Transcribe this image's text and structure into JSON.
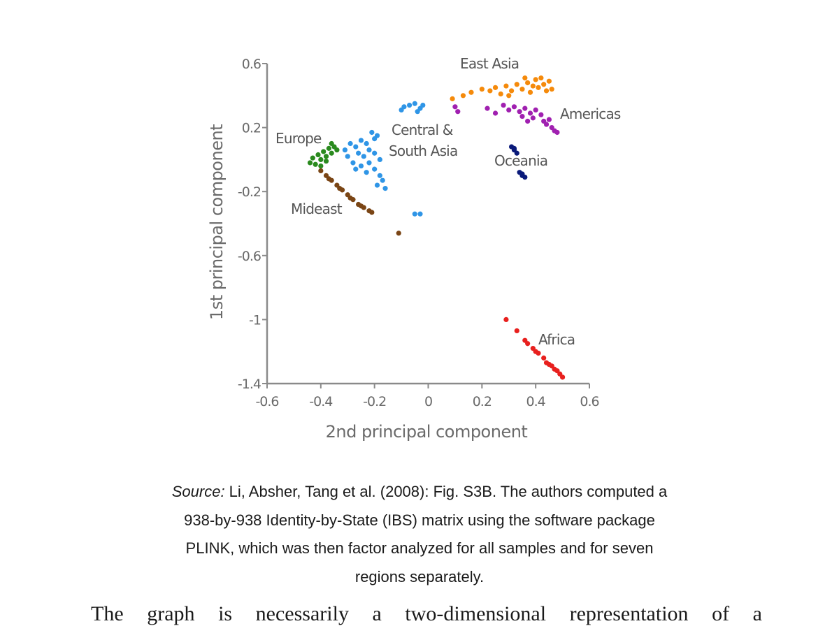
{
  "chart_data": {
    "type": "scatter",
    "xlabel": "2nd principal component",
    "ylabel": "1st principal component",
    "xlim": [
      -0.6,
      0.6
    ],
    "ylim": [
      -1.4,
      0.6
    ],
    "xticks": [
      -0.6,
      -0.4,
      -0.2,
      0,
      0.2,
      0.4,
      0.6
    ],
    "yticks": [
      0.6,
      0.2,
      -0.2,
      -0.6,
      -1,
      -1.4
    ],
    "xtick_labels": [
      "-0.6",
      "-0.4",
      "-0.2",
      "0",
      "0.2",
      "0.4",
      "0.6"
    ],
    "ytick_labels": [
      "0.6",
      "0.2",
      "-0.2",
      "-0.6",
      "-1",
      "-1.4"
    ],
    "grid": false,
    "legend": "none",
    "series": [
      {
        "name": "East Asia",
        "color": "#f58a0b",
        "label": "East Asia",
        "points": [
          [
            0.09,
            0.38
          ],
          [
            0.13,
            0.4
          ],
          [
            0.16,
            0.42
          ],
          [
            0.2,
            0.44
          ],
          [
            0.23,
            0.43
          ],
          [
            0.25,
            0.45
          ],
          [
            0.27,
            0.41
          ],
          [
            0.29,
            0.46
          ],
          [
            0.31,
            0.43
          ],
          [
            0.33,
            0.47
          ],
          [
            0.35,
            0.44
          ],
          [
            0.37,
            0.48
          ],
          [
            0.38,
            0.42
          ],
          [
            0.4,
            0.5
          ],
          [
            0.41,
            0.45
          ],
          [
            0.43,
            0.47
          ],
          [
            0.44,
            0.43
          ],
          [
            0.45,
            0.49
          ],
          [
            0.46,
            0.44
          ],
          [
            0.36,
            0.51
          ],
          [
            0.3,
            0.4
          ],
          [
            0.39,
            0.46
          ],
          [
            0.42,
            0.51
          ]
        ]
      },
      {
        "name": "Americas",
        "color": "#a020b0",
        "label": "Americas",
        "points": [
          [
            0.1,
            0.33
          ],
          [
            0.11,
            0.3
          ],
          [
            0.22,
            0.32
          ],
          [
            0.25,
            0.29
          ],
          [
            0.28,
            0.34
          ],
          [
            0.3,
            0.31
          ],
          [
            0.32,
            0.33
          ],
          [
            0.34,
            0.3
          ],
          [
            0.36,
            0.32
          ],
          [
            0.38,
            0.29
          ],
          [
            0.39,
            0.26
          ],
          [
            0.4,
            0.31
          ],
          [
            0.42,
            0.28
          ],
          [
            0.43,
            0.24
          ],
          [
            0.44,
            0.22
          ],
          [
            0.45,
            0.25
          ],
          [
            0.46,
            0.2
          ],
          [
            0.47,
            0.18
          ],
          [
            0.48,
            0.17
          ],
          [
            0.37,
            0.24
          ],
          [
            0.35,
            0.27
          ]
        ]
      },
      {
        "name": "Oceania",
        "color": "#0a1a7a",
        "label": "Oceania",
        "points": [
          [
            0.31,
            0.08
          ],
          [
            0.32,
            0.06
          ],
          [
            0.33,
            0.04
          ],
          [
            0.32,
            0.07
          ],
          [
            0.34,
            -0.08
          ],
          [
            0.35,
            -0.1
          ],
          [
            0.36,
            -0.11
          ],
          [
            0.35,
            -0.09
          ]
        ]
      },
      {
        "name": "Central & South Asia",
        "color": "#2f95e6",
        "label": "Central & South Asia",
        "points": [
          [
            -0.1,
            0.31
          ],
          [
            -0.09,
            0.33
          ],
          [
            -0.07,
            0.34
          ],
          [
            -0.05,
            0.35
          ],
          [
            -0.03,
            0.32
          ],
          [
            -0.02,
            0.34
          ],
          [
            -0.04,
            0.3
          ],
          [
            -0.19,
            0.15
          ],
          [
            -0.21,
            0.17
          ],
          [
            -0.2,
            0.13
          ],
          [
            -0.23,
            0.1
          ],
          [
            -0.25,
            0.12
          ],
          [
            -0.27,
            0.08
          ],
          [
            -0.29,
            0.1
          ],
          [
            -0.31,
            0.06
          ],
          [
            -0.26,
            0.04
          ],
          [
            -0.24,
            0.02
          ],
          [
            -0.22,
            0.06
          ],
          [
            -0.2,
            0.04
          ],
          [
            -0.18,
            0.0
          ],
          [
            -0.22,
            -0.02
          ],
          [
            -0.25,
            -0.04
          ],
          [
            -0.28,
            -0.02
          ],
          [
            -0.27,
            -0.06
          ],
          [
            -0.23,
            -0.08
          ],
          [
            -0.2,
            -0.06
          ],
          [
            -0.18,
            -0.1
          ],
          [
            -0.17,
            -0.13
          ],
          [
            -0.19,
            -0.16
          ],
          [
            -0.16,
            -0.18
          ],
          [
            -0.05,
            -0.34
          ],
          [
            -0.03,
            -0.34
          ],
          [
            -0.3,
            0.02
          ]
        ]
      },
      {
        "name": "Europe",
        "color": "#2a8a1e",
        "label": "Europe",
        "points": [
          [
            -0.44,
            -0.02
          ],
          [
            -0.43,
            0.01
          ],
          [
            -0.42,
            -0.03
          ],
          [
            -0.41,
            0.03
          ],
          [
            -0.4,
            0.0
          ],
          [
            -0.39,
            0.05
          ],
          [
            -0.38,
            0.02
          ],
          [
            -0.37,
            0.07
          ],
          [
            -0.36,
            0.04
          ],
          [
            -0.35,
            0.08
          ],
          [
            -0.34,
            0.06
          ],
          [
            -0.38,
            -0.01
          ],
          [
            -0.4,
            -0.04
          ],
          [
            -0.36,
            0.1
          ]
        ]
      },
      {
        "name": "Mideast",
        "color": "#7a4515",
        "label": "Mideast",
        "points": [
          [
            -0.4,
            -0.07
          ],
          [
            -0.38,
            -0.1
          ],
          [
            -0.36,
            -0.13
          ],
          [
            -0.34,
            -0.16
          ],
          [
            -0.32,
            -0.19
          ],
          [
            -0.3,
            -0.22
          ],
          [
            -0.28,
            -0.25
          ],
          [
            -0.26,
            -0.28
          ],
          [
            -0.24,
            -0.3
          ],
          [
            -0.22,
            -0.32
          ],
          [
            -0.21,
            -0.33
          ],
          [
            -0.37,
            -0.12
          ],
          [
            -0.33,
            -0.18
          ],
          [
            -0.29,
            -0.24
          ],
          [
            -0.25,
            -0.29
          ],
          [
            -0.11,
            -0.46
          ]
        ]
      },
      {
        "name": "Africa",
        "color": "#e8201e",
        "label": "Africa",
        "points": [
          [
            0.29,
            -1.0
          ],
          [
            0.33,
            -1.07
          ],
          [
            0.36,
            -1.13
          ],
          [
            0.37,
            -1.15
          ],
          [
            0.39,
            -1.18
          ],
          [
            0.4,
            -1.2
          ],
          [
            0.41,
            -1.21
          ],
          [
            0.43,
            -1.24
          ],
          [
            0.44,
            -1.27
          ],
          [
            0.45,
            -1.28
          ],
          [
            0.46,
            -1.29
          ],
          [
            0.47,
            -1.31
          ],
          [
            0.48,
            -1.32
          ],
          [
            0.49,
            -1.34
          ],
          [
            0.5,
            -1.36
          ]
        ]
      }
    ]
  },
  "caption": {
    "source_label": "Source:",
    "line1": " Li, Absher, Tang et al. (2008): Fig. S3B. The authors computed a",
    "line2": "938-by-938 Identity-by-State (IBS) matrix using the software package",
    "line3": "PLINK, which was then factor analyzed for all samples and for seven",
    "line4": "regions separately."
  },
  "body_text": "The graph is necessarily a two-dimensional representation of a"
}
